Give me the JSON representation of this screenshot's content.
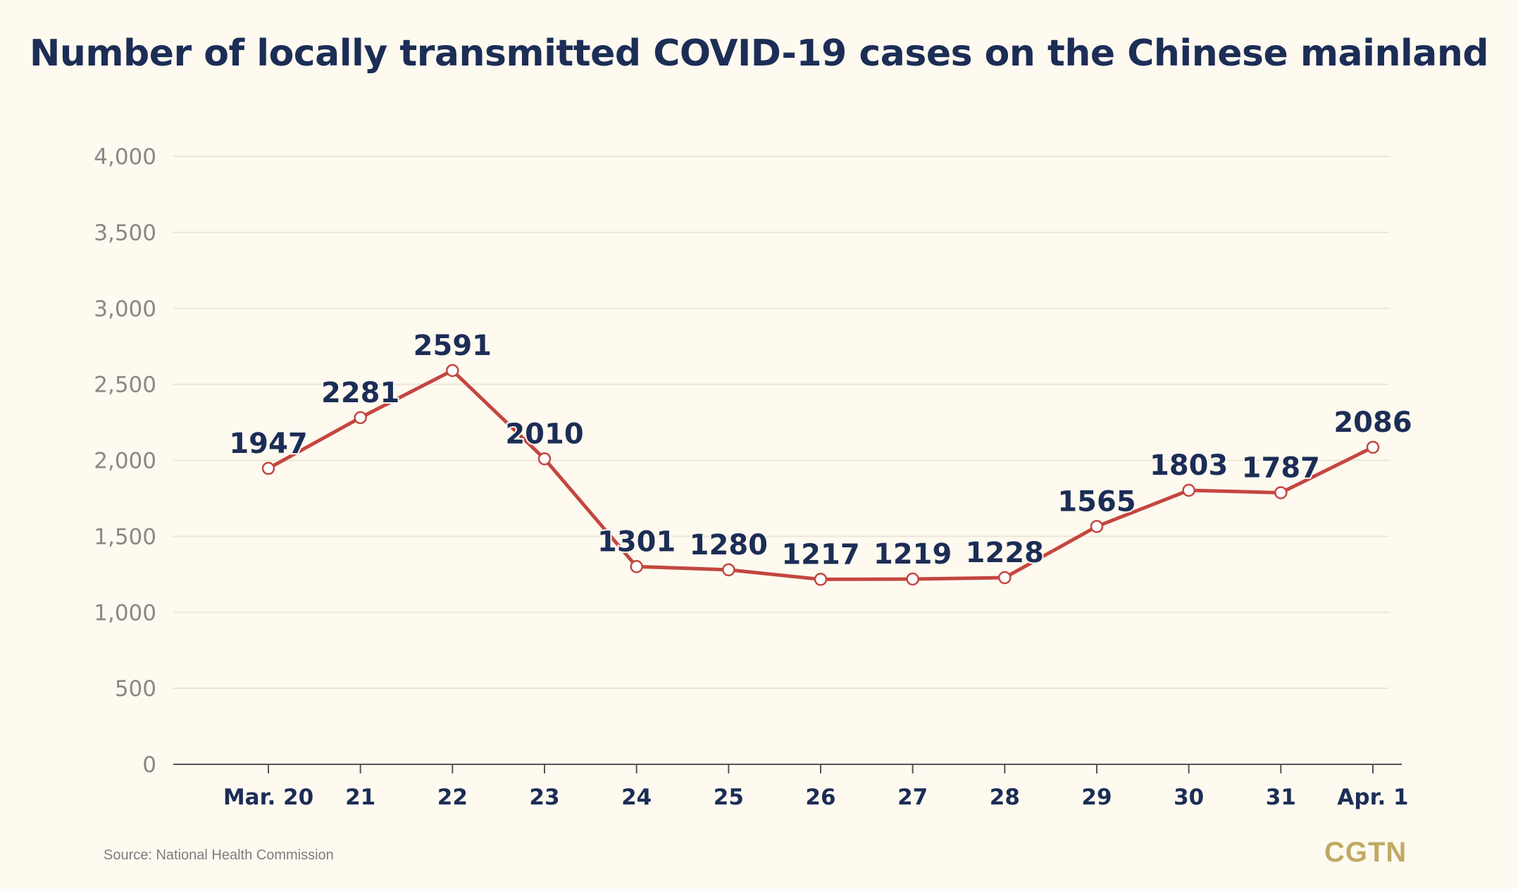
{
  "chart_data": {
    "type": "line",
    "title": "Number of locally transmitted COVID-19 cases on the Chinese mainland",
    "categories": [
      "Mar. 20",
      "21",
      "22",
      "23",
      "24",
      "25",
      "26",
      "27",
      "28",
      "29",
      "30",
      "31",
      "Apr. 1"
    ],
    "values": [
      1947,
      2281,
      2591,
      2010,
      1301,
      1280,
      1217,
      1219,
      1228,
      1565,
      1803,
      1787,
      2086
    ],
    "ylim": [
      0,
      4000
    ],
    "yticks": [
      0,
      500,
      1000,
      1500,
      2000,
      2500,
      3000,
      3500,
      4000
    ],
    "ytick_labels": [
      "0",
      "500",
      "1,000",
      "1,500",
      "2,000",
      "2,500",
      "3,000",
      "3,500",
      "4,000"
    ],
    "xlabel": "",
    "ylabel": "",
    "grid": true,
    "colors": {
      "line": "#c4463f",
      "labels": "#1c2d56",
      "ticks": "#888888",
      "grid": "#ebe6da"
    }
  },
  "source": "Source: National Health Commission",
  "logo": "CGTN"
}
